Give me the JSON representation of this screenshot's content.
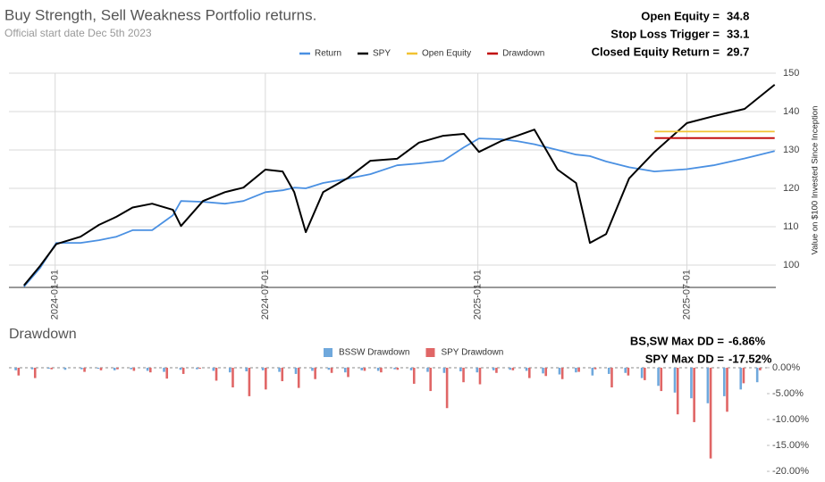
{
  "chart_data": [
    {
      "type": "line",
      "title": "Buy Strength, Sell Weakness Portfolio returns.",
      "subtitle": "Official start date Dec 5th 2023",
      "annotations": [
        {
          "label": "Open Equity =",
          "value": 34.8
        },
        {
          "label": "Stop Loss Trigger =",
          "value": 33.1
        },
        {
          "label": "Closed Equity Return =",
          "value": 29.7
        }
      ],
      "x": [
        "2023-12-05",
        "2023-12-19",
        "2024-01-02",
        "2024-01-23",
        "2024-02-08",
        "2024-02-23",
        "2024-03-08",
        "2024-03-25",
        "2024-04-12",
        "2024-04-19",
        "2024-05-08",
        "2024-05-27",
        "2024-06-12",
        "2024-07-01",
        "2024-07-16",
        "2024-07-26",
        "2024-08-05",
        "2024-08-20",
        "2024-09-10",
        "2024-09-30",
        "2024-10-23",
        "2024-11-11",
        "2024-12-02",
        "2024-12-20",
        "2025-01-02",
        "2025-01-21",
        "2025-02-04",
        "2025-02-19",
        "2025-03-11",
        "2025-03-27",
        "2025-04-08",
        "2025-04-22",
        "2025-05-12",
        "2025-06-03",
        "2025-07-01",
        "2025-07-24",
        "2025-08-20",
        "2025-09-15"
      ],
      "series": [
        {
          "name": "Return",
          "color": "#4a90e2",
          "values": [
            94.4,
            99.3,
            105.8,
            105.8,
            106.5,
            107.4,
            109.1,
            109.1,
            113,
            116.7,
            116.5,
            116,
            116.7,
            119,
            119.5,
            120.2,
            120,
            121.4,
            122.5,
            123.7,
            126,
            126.5,
            127.2,
            130.7,
            133,
            132.8,
            132.3,
            131.5,
            130,
            128.8,
            128.4,
            127,
            125.5,
            124.4,
            125,
            126,
            127.8,
            129.7
          ]
        },
        {
          "name": "SPY",
          "color": "#000000",
          "values": [
            94.7,
            99.8,
            105.5,
            107.4,
            110.5,
            112.6,
            115,
            116,
            114.4,
            110.2,
            116.7,
            119,
            120.2,
            124.9,
            124.4,
            119,
            108.6,
            119,
            122.6,
            127.2,
            127.7,
            131.9,
            133.7,
            134.2,
            129.5,
            132.3,
            133.7,
            135.3,
            124.9,
            121.4,
            105.8,
            108.1,
            122.6,
            129.5,
            137,
            138.8,
            140.7,
            147
          ]
        },
        {
          "name": "Open Equity",
          "color": "#f1c232",
          "values": [
            null,
            null,
            null,
            null,
            null,
            null,
            null,
            null,
            null,
            null,
            null,
            null,
            null,
            null,
            null,
            null,
            null,
            null,
            null,
            null,
            null,
            null,
            null,
            null,
            null,
            null,
            null,
            null,
            null,
            null,
            null,
            null,
            null,
            134.8,
            134.8,
            134.8,
            134.8,
            134.8
          ]
        },
        {
          "name": "Drawdown",
          "color": "#c00000",
          "values": [
            null,
            null,
            null,
            null,
            null,
            null,
            null,
            null,
            null,
            null,
            null,
            null,
            null,
            null,
            null,
            null,
            null,
            null,
            null,
            null,
            null,
            null,
            null,
            null,
            null,
            null,
            null,
            null,
            null,
            null,
            null,
            null,
            null,
            133.1,
            133.1,
            133.1,
            133.1,
            133.1
          ]
        }
      ],
      "xlim": [
        "2023-11-22",
        "2025-09-16"
      ],
      "xticks": [
        "2024-01-01",
        "2024-07-01",
        "2025-01-01",
        "2025-07-01"
      ],
      "ylim": [
        94.2,
        150
      ],
      "yticks": [
        100,
        110,
        120,
        130,
        140,
        150
      ],
      "y_label": "Value on $100 Invested Since Inception",
      "grid": true,
      "legend": "top"
    },
    {
      "type": "bar",
      "title": "Drawdown",
      "annotations": [
        {
          "label": "BS,SW Max DD =",
          "value": "-6.86%"
        },
        {
          "label": "SPY Max DD =",
          "value": "-17.52%"
        }
      ],
      "series": [
        {
          "name": "BSSW Drawdown",
          "color": "#6fa8dc",
          "values": [
            -0.5,
            -0.3,
            -0.2,
            -0.4,
            -0.3,
            -0.2,
            -0.5,
            -0.3,
            -0.6,
            -0.8,
            -0.4,
            -0.3,
            -0.6,
            -0.9,
            -0.7,
            -0.5,
            -0.8,
            -1.2,
            -0.6,
            -0.4,
            -0.9,
            -0.5,
            -0.6,
            -0.3,
            -0.5,
            -0.8,
            -1.0,
            -0.7,
            -0.9,
            -0.5,
            -0.4,
            -0.6,
            -1.1,
            -1.3,
            -0.9,
            -1.5,
            -1.2,
            -1.0,
            -2.0,
            -3.5,
            -4.8,
            -5.9,
            -6.86,
            -5.5,
            -4.2,
            -2.8
          ]
        },
        {
          "name": "SPY Drawdown",
          "color": "#e06666",
          "values": [
            -1.5,
            -2.0,
            -0.3,
            0,
            -0.8,
            -0.5,
            -0.3,
            -0.6,
            -0.9,
            -2.1,
            -1.2,
            -0.2,
            -2.5,
            -3.8,
            -5.5,
            -4.2,
            -2.6,
            -3.9,
            -2.2,
            -1.0,
            -1.8,
            -0.6,
            -0.9,
            -0.4,
            -3.1,
            -4.5,
            -7.8,
            -2.8,
            -3.2,
            -1.0,
            -0.5,
            -2.0,
            -1.6,
            -2.2,
            -0.8,
            -0.3,
            -3.8,
            -1.5,
            -2.4,
            -4.5,
            -9.0,
            -10.5,
            -17.52,
            -8.5,
            -3.0,
            -0.5
          ]
        }
      ],
      "ylim": [
        -21.2,
        1.2
      ],
      "yticks": [
        {
          "value": 0,
          "label": "0.00%"
        },
        {
          "value": -5,
          "label": "-5.00%"
        },
        {
          "value": -10,
          "label": "-10.00%"
        },
        {
          "value": -15,
          "label": "-15.00%"
        },
        {
          "value": -20,
          "label": "-20.00%"
        }
      ],
      "grid": false,
      "legend": "top"
    }
  ]
}
